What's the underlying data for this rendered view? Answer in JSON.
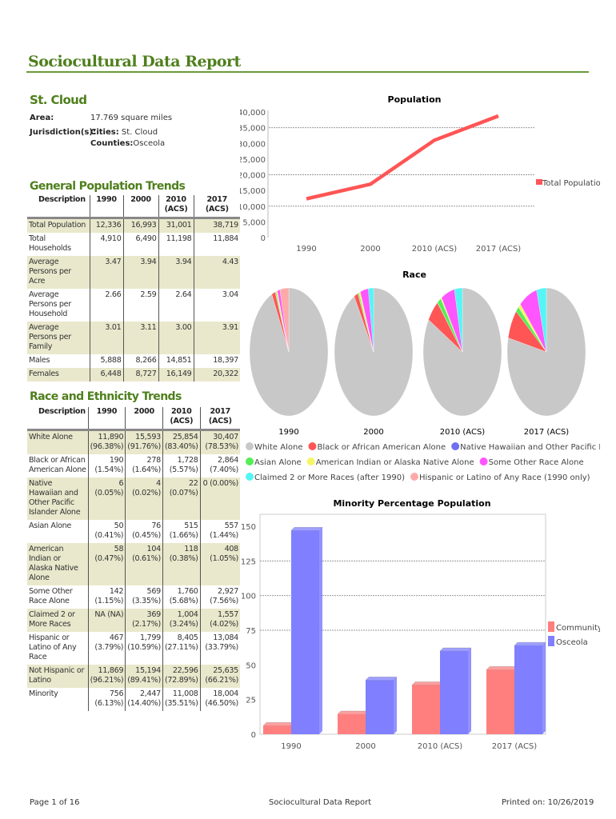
{
  "header": {
    "title": "Sociocultural Data Report"
  },
  "place": {
    "name": "St. Cloud",
    "area_label": "Area:",
    "area_value": "17.769 square miles",
    "jurisdiction_label": "Jurisdiction(s):",
    "cities_label": "Cities:",
    "cities_value": "St. Cloud",
    "counties_label": "Counties:",
    "counties_value": "Osceola"
  },
  "general": {
    "title": "General Population Trends",
    "headers": [
      "Description",
      "1990",
      "2000",
      "2010 (ACS)",
      "2017 (ACS)"
    ],
    "rows": [
      [
        "Total Population",
        "12,336",
        "16,993",
        "31,001",
        "38,719"
      ],
      [
        "Total Households",
        "4,910",
        "6,490",
        "11,198",
        "11,884"
      ],
      [
        "Average Persons per Acre",
        "3.47",
        "3.94",
        "3.94",
        "4.43"
      ],
      [
        "Average Persons per Household",
        "2.66",
        "2.59",
        "2.64",
        "3.04"
      ],
      [
        "Average Persons per Family",
        "3.01",
        "3.11",
        "3.00",
        "3.91"
      ],
      [
        "Males",
        "5,888",
        "8,266",
        "14,851",
        "18,397"
      ],
      [
        "Females",
        "6,448",
        "8,727",
        "16,149",
        "20,322"
      ]
    ]
  },
  "race": {
    "title": "Race and Ethnicity Trends",
    "headers": [
      "Description",
      "1990",
      "2000",
      "2010 (ACS)",
      "2017 (ACS)"
    ],
    "rows": [
      [
        "White Alone",
        "11,890 (96.38%)",
        "15,593 (91.76%)",
        "25,854 (83.40%)",
        "30,407 (78.53%)"
      ],
      [
        "Black or African American Alone",
        "190 (1.54%)",
        "278 (1.64%)",
        "1,728 (5.57%)",
        "2,864 (7.40%)"
      ],
      [
        "Native Hawaiian and Other Pacific Islander Alone",
        "6 (0.05%)",
        "4 (0.02%)",
        "22 (0.07%)",
        "0 (0.00%)"
      ],
      [
        "Asian Alone",
        "50 (0.41%)",
        "76 (0.45%)",
        "515 (1.66%)",
        "557 (1.44%)"
      ],
      [
        "American Indian or Alaska Native Alone",
        "58 (0.47%)",
        "104 (0.61%)",
        "118 (0.38%)",
        "408 (1.05%)"
      ],
      [
        "Some Other Race Alone",
        "142 (1.15%)",
        "569 (3.35%)",
        "1,760 (5.68%)",
        "2,927 (7.56%)"
      ],
      [
        "Claimed 2 or More Races",
        "NA (NA)",
        "369 (2.17%)",
        "1,004 (3.24%)",
        "1,557 (4.02%)"
      ],
      [
        "Hispanic or Latino of Any Race",
        "467 (3.79%)",
        "1,799 (10.59%)",
        "8,405 (27.11%)",
        "13,084 (33.79%)"
      ],
      [
        "Not Hispanic or Latino",
        "11,869 (96.21%)",
        "15,194 (89.41%)",
        "22,596 (72.89%)",
        "25,635 (66.21%)"
      ],
      [
        "Minority",
        "756 (6.13%)",
        "2,447 (14.40%)",
        "11,008 (35.51%)",
        "18,004 (46.50%)"
      ]
    ]
  },
  "chart_data": [
    {
      "type": "line",
      "title": "Population",
      "categories": [
        "1990",
        "2000",
        "2010 (ACS)",
        "2017 (ACS)"
      ],
      "series": [
        {
          "name": "Total Population",
          "values": [
            12336,
            16993,
            31001,
            38719
          ],
          "color": "#ff5555"
        }
      ],
      "ylim": [
        0,
        40000
      ],
      "yticks": [
        "0",
        "5,000",
        "10,000",
        "15,000",
        "20,000",
        "25,000",
        "30,000",
        "35,000",
        "40,000"
      ],
      "grid": true,
      "legend": "right"
    },
    {
      "type": "pie",
      "title": "Race",
      "categories": [
        "1990",
        "2000",
        "2010 (ACS)",
        "2017 (ACS)"
      ],
      "legend": [
        {
          "name": "White Alone",
          "color": "#c8c8c8"
        },
        {
          "name": "Black or African American Alone",
          "color": "#ff5555"
        },
        {
          "name": "Native Hawaiian and Other Pacific Islander Alone",
          "color": "#6f6fef"
        },
        {
          "name": "Asian Alone",
          "color": "#55ee55"
        },
        {
          "name": "American Indian or Alaska Native Alone",
          "color": "#f5f566"
        },
        {
          "name": "Some Other Race Alone",
          "color": "#ff55ff"
        },
        {
          "name": "Claimed 2 or More Races (after 1990)",
          "color": "#55f5f5"
        },
        {
          "name": "Hispanic or Latino of Any Race (1990 only)",
          "color": "#ffaaaa"
        }
      ],
      "values": [
        [
          96.38,
          1.54,
          0.05,
          0.41,
          0.47,
          1.15,
          0,
          3.79
        ],
        [
          91.76,
          1.64,
          0.02,
          0.45,
          0.61,
          3.35,
          2.17,
          0
        ],
        [
          83.4,
          5.57,
          0.07,
          1.66,
          0.38,
          5.68,
          3.24,
          0
        ],
        [
          78.53,
          7.4,
          0.0,
          1.44,
          1.05,
          7.56,
          4.02,
          0
        ]
      ]
    },
    {
      "type": "bar",
      "title": "Minority Percentage Population",
      "categories": [
        "1990",
        "2000",
        "2010 (ACS)",
        "2017 (ACS)"
      ],
      "series": [
        {
          "name": "Community",
          "values": [
            6.13,
            14.4,
            35.51,
            46.5
          ],
          "color": "#ff7f7f"
        },
        {
          "name": "Osceola",
          "values": [
            147,
            39,
            60,
            64
          ],
          "color": "#7f7fff"
        }
      ],
      "ylim": [
        0,
        150
      ],
      "yticks": [
        "0",
        "25",
        "50",
        "75",
        "100",
        "125",
        "150"
      ],
      "grid": true,
      "legend": "right"
    }
  ],
  "footer": {
    "page": "Page 1 of 16",
    "center": "Sociocultural Data Report",
    "printed": "Printed on: 10/26/2019"
  }
}
